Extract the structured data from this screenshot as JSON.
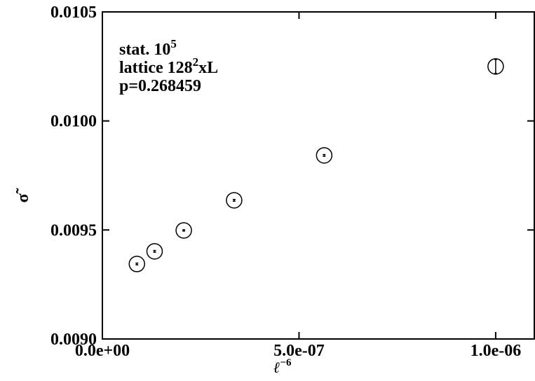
{
  "chart_data": {
    "type": "scatter",
    "xlabel": {
      "text": "ℓ",
      "sup": "−6"
    },
    "ylabel": "σ̃",
    "annotations": [
      {
        "text": "stat. 10",
        "sup": "5"
      },
      {
        "text": "lattice 128",
        "sup": "2",
        "after": "xL"
      },
      {
        "text": "p=0.268459"
      }
    ],
    "x": [
      8.78e-08,
      1.328e-07,
      2.07e-07,
      3.35e-07,
      5.64e-07,
      1e-06
    ],
    "values": [
      0.009344,
      0.009402,
      0.009498,
      0.009636,
      0.009842,
      0.01025
    ],
    "errors": [
      4e-06,
      4e-06,
      3e-06,
      4e-06,
      4e-06,
      3.2e-05
    ],
    "color": "#000000",
    "xlim": [
      0,
      1.1e-06
    ],
    "ylim": [
      0.009,
      0.0105
    ],
    "xticks": [
      {
        "value": 0,
        "label": "0.0e+00"
      },
      {
        "value": 5e-07,
        "label": "5.0e-07"
      },
      {
        "value": 1e-06,
        "label": "1.0e-06"
      }
    ],
    "yticks": [
      {
        "value": 0.009,
        "label": "0.0090"
      },
      {
        "value": 0.0095,
        "label": "0.0095"
      },
      {
        "value": 0.01,
        "label": "0.0100"
      },
      {
        "value": 0.0105,
        "label": "0.0105"
      }
    ]
  }
}
